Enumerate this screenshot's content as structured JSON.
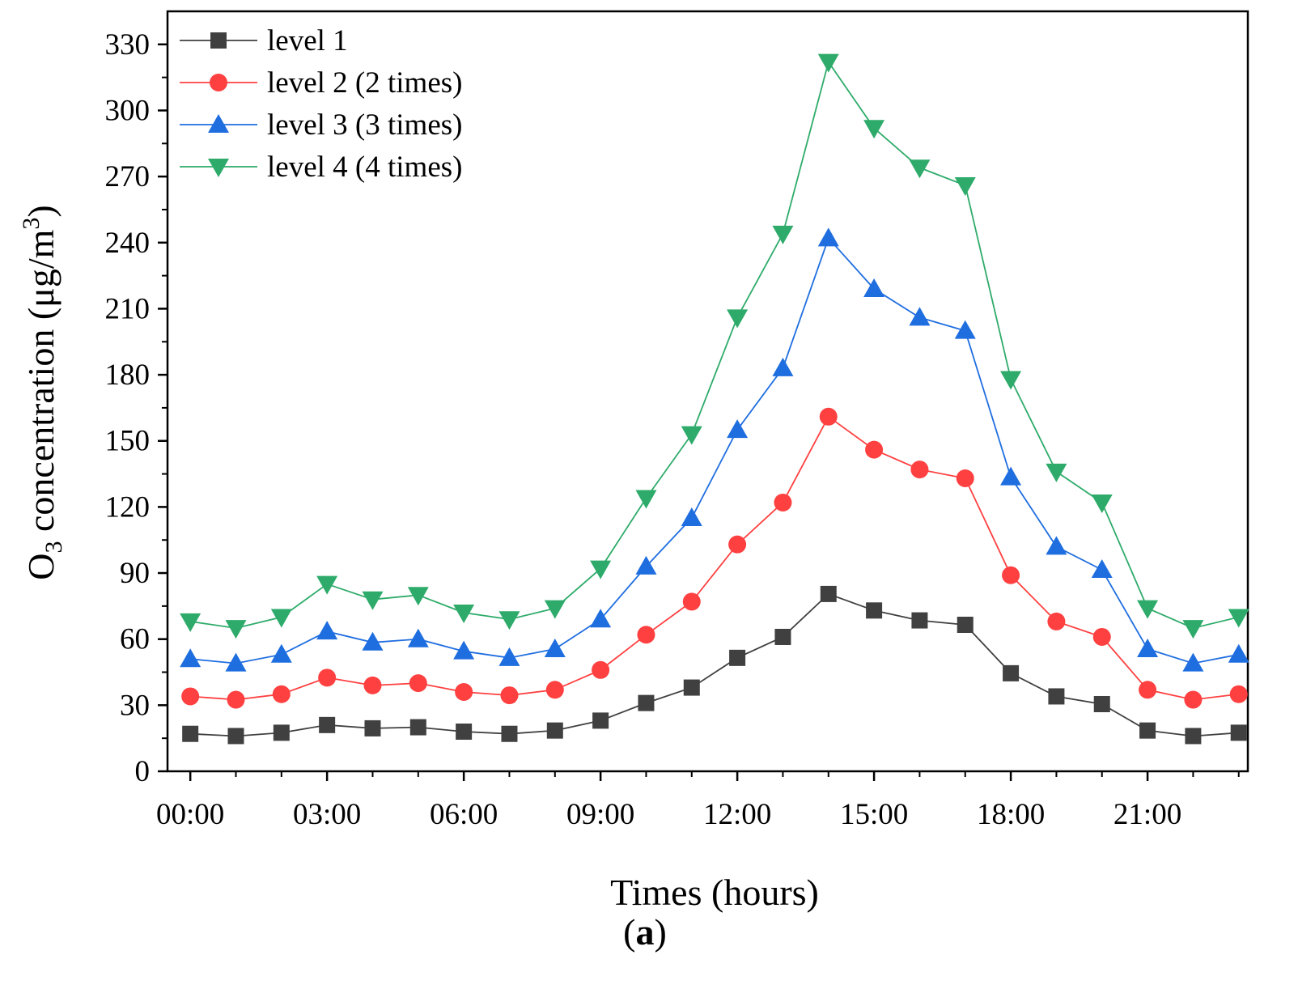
{
  "chart_data": {
    "type": "line",
    "title": "",
    "caption": "(a)",
    "caption_letter": "a",
    "xlabel": "Times (hours)",
    "ylabel": {
      "prefix": "O",
      "subscript": "3",
      "middle": " concentration (μg/m",
      "superscript": "3",
      "suffix": ")"
    },
    "x": [
      0,
      1,
      2,
      3,
      4,
      5,
      6,
      7,
      8,
      9,
      10,
      11,
      12,
      13,
      14,
      15,
      16,
      17,
      18,
      19,
      20,
      21,
      22,
      23
    ],
    "xlim": [
      -0.5,
      23.2
    ],
    "x_ticks": [
      {
        "value": 0,
        "label": "00:00"
      },
      {
        "value": 3,
        "label": "03:00"
      },
      {
        "value": 6,
        "label": "06:00"
      },
      {
        "value": 9,
        "label": "09:00"
      },
      {
        "value": 12,
        "label": "12:00"
      },
      {
        "value": 15,
        "label": "15:00"
      },
      {
        "value": 18,
        "label": "18:00"
      },
      {
        "value": 21,
        "label": "21:00"
      }
    ],
    "ylim": [
      0,
      345
    ],
    "y_ticks": [
      0,
      30,
      60,
      90,
      120,
      150,
      180,
      210,
      240,
      270,
      300,
      330
    ],
    "y_minor_step": 15,
    "legend_position": "top-left",
    "series": [
      {
        "name": "level 1",
        "color": "#404040",
        "marker": "square",
        "values": [
          17,
          16,
          17.5,
          21,
          19.5,
          20,
          18,
          17,
          18.5,
          23,
          31,
          38,
          51.5,
          61,
          80.5,
          73,
          68.5,
          66.5,
          44.5,
          34,
          30.5,
          18.5,
          16,
          17.5
        ]
      },
      {
        "name": "level 2 (2 times)",
        "color": "#ff4040",
        "marker": "circle",
        "values": [
          34,
          32.5,
          35,
          42.5,
          39,
          40,
          36,
          34.5,
          37,
          46,
          62,
          77,
          103,
          122,
          161,
          146,
          137,
          133,
          89,
          68,
          61,
          37,
          32.5,
          35
        ]
      },
      {
        "name": "level 3 (3 times)",
        "color": "#1f6ee0",
        "marker": "triangle-up",
        "values": [
          51,
          49,
          53,
          63.5,
          58.5,
          60,
          54.5,
          51.5,
          55.5,
          69,
          93,
          115,
          155,
          183,
          242,
          219,
          206,
          200,
          133.5,
          102,
          91.5,
          55.5,
          49,
          53
        ]
      },
      {
        "name": "level 4 (4 times)",
        "color": "#2eab6a",
        "marker": "triangle-down",
        "values": [
          68,
          65,
          70,
          85,
          78,
          80,
          72,
          69,
          74,
          92,
          124,
          153,
          206,
          244,
          322,
          292,
          274,
          266,
          178,
          136,
          122,
          74,
          65,
          70
        ]
      }
    ]
  }
}
